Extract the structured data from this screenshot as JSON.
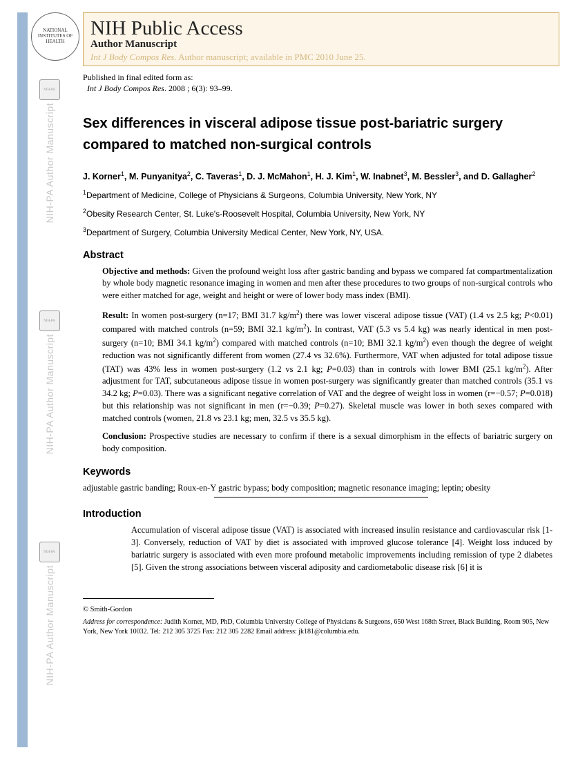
{
  "watermark": {
    "text": "NIH-PA Author Manuscript",
    "logo_label": "NIH-PA"
  },
  "header": {
    "logo_text": "NATIONAL INSTITUTES OF HEALTH",
    "title": "NIH Public Access",
    "subtitle": "Author Manuscript",
    "journal_ital": "Int J Body Compos Res",
    "journal_rest": ". Author manuscript; available in PMC 2010 June 25."
  },
  "pub": {
    "line1": "Published in final edited form as:",
    "line2_ital": "Int J Body Compos Res",
    "line2_rest": ". 2008 ; 6(3): 93–99."
  },
  "title": "Sex differences in visceral adipose tissue post-bariatric surgery compared to matched non-surgical controls",
  "authors_html": "J. Korner<sup>1</sup>, M. Punyanitya<sup>2</sup>, C. Taveras<sup>1</sup>, D. J. McMahon<sup>1</sup>, H. J. Kim<sup>1</sup>, W. Inabnet<sup>3</sup>, M. Bessler<sup>3</sup>, and D. Gallagher<sup>2</sup>",
  "affiliations": [
    {
      "sup": "1",
      "text": "Department of Medicine, College of Physicians & Surgeons, Columbia University, New York, NY"
    },
    {
      "sup": "2",
      "text": "Obesity Research Center, St. Luke's-Roosevelt Hospital, Columbia University, New York, NY"
    },
    {
      "sup": "3",
      "text": "Department of Surgery, Columbia University Medical Center, New York, NY, USA."
    }
  ],
  "abstract": {
    "heading": "Abstract",
    "objective_lead": "Objective and methods:",
    "objective": " Given the profound weight loss after gastric banding and bypass we compared fat compartmentalization by whole body magnetic resonance imaging in women and men after these procedures to two groups of non-surgical controls who were either matched for age, weight and height or were of lower body mass index (BMI).",
    "result_lead": "Result:",
    "result_html": " In women post-surgery (n=17; BMI 31.7 kg/m<sup>2</sup>) there was lower visceral adipose tissue (VAT) (1.4 vs 2.5 kg; <span class=\"ital\">P</span>&lt;0.01) compared with matched controls (n=59; BMI 32.1 kg/m<sup>2</sup>). In contrast, VAT (5.3 vs 5.4 kg) was nearly identical in men post-surgery (n=10; BMI 34.1 kg/m<sup>2</sup>) compared with matched controls (n=10; BMI 32.1 kg/m<sup>2</sup>) even though the degree of weight reduction was not significantly different from women (27.4 vs 32.6%). Furthermore, VAT when adjusted for total adipose tissue (TAT) was 43% less in women post-surgery (1.2 vs 2.1 kg; <span class=\"ital\">P</span>=0.03) than in controls with lower BMI (25.1 kg/m<sup>2</sup>). After adjustment for TAT, subcutaneous adipose tissue in women post-surgery was significantly greater than matched controls (35.1 vs 34.2 kg; <span class=\"ital\">P</span>=0.03). There was a significant negative correlation of VAT and the degree of weight loss in women (r=−0.57; <span class=\"ital\">P</span>=0.018) but this relationship was not significant in men (r=−0.39; <span class=\"ital\">P</span>=0.27). Skeletal muscle was lower in both sexes compared with matched controls (women, 21.8 vs 23.1 kg; men, 32.5 vs 35.5 kg).",
    "conclusion_lead": "Conclusion:",
    "conclusion": " Prospective studies are necessary to confirm if there is a sexual dimorphism in the effects of bariatric surgery on body composition."
  },
  "keywords": {
    "heading": "Keywords",
    "text": "adjustable gastric banding; Roux-en-Y gastric bypass; body composition; magnetic resonance imaging; leptin; obesity"
  },
  "introduction": {
    "heading": "Introduction",
    "text": "Accumulation of visceral adipose tissue (VAT) is associated with increased insulin resistance and cardiovascular risk [1-3]. Conversely, reduction of VAT by diet is associated with improved glucose tolerance [4]. Weight loss induced by bariatric surgery is associated with even more profound metabolic improvements including remission of type 2 diabetes [5]. Given the strong associations between visceral adiposity and cardiometabolic disease risk [6] it is"
  },
  "footer": {
    "copyright": "© Smith-Gordon",
    "corr_lead": "Address for correspondence:",
    "corr_text": " Judith Korner, MD, PhD, Columbia University College of Physicians & Surgeons, 650 West 168th Street, Black Building, Room 905, New York, New York 10032. Tel: 212 305 3725 Fax: 212 305 2282 Email address: jk181@columbia.edu."
  }
}
